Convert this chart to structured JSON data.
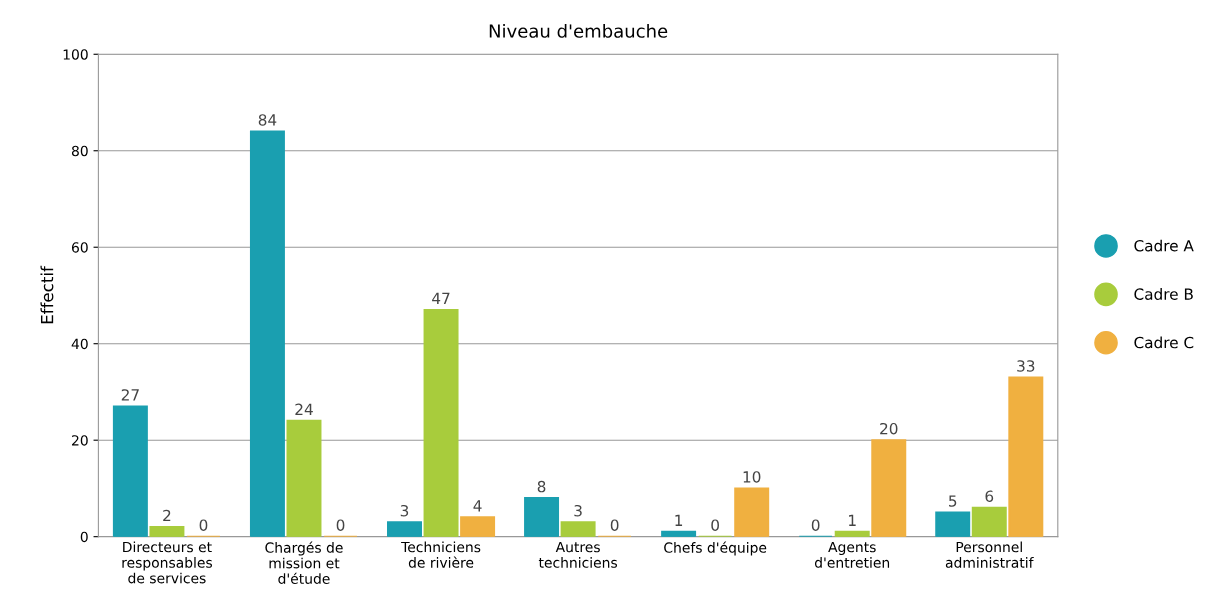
{
  "chart_data": {
    "type": "bar",
    "title": "Niveau d'embauche",
    "ylabel": "Effectif",
    "categories": [
      "Directeurs et\nresponsables\nde services",
      "Chargés de\nmission et\nd'étude",
      "Techniciens\nde rivière",
      "Autres\ntechniciens",
      "Chefs d'équipe",
      "Agents\nd'entretien",
      "Personnel\nadministratif"
    ],
    "series": [
      {
        "name": "Cadre A",
        "color": "#1a9fb0",
        "values": [
          27,
          84,
          3,
          8,
          1,
          0,
          5
        ]
      },
      {
        "name": "Cadre B",
        "color": "#a8cc3c",
        "values": [
          2,
          24,
          47,
          3,
          0,
          1,
          6
        ]
      },
      {
        "name": "Cadre C",
        "color": "#f0b040",
        "values": [
          0,
          0,
          4,
          0,
          10,
          20,
          33
        ]
      }
    ],
    "ylim": [
      0,
      100
    ],
    "yticks": [
      0,
      20,
      40,
      60,
      80,
      100
    ],
    "grid": "y",
    "legend": "right",
    "data_labels": true
  }
}
